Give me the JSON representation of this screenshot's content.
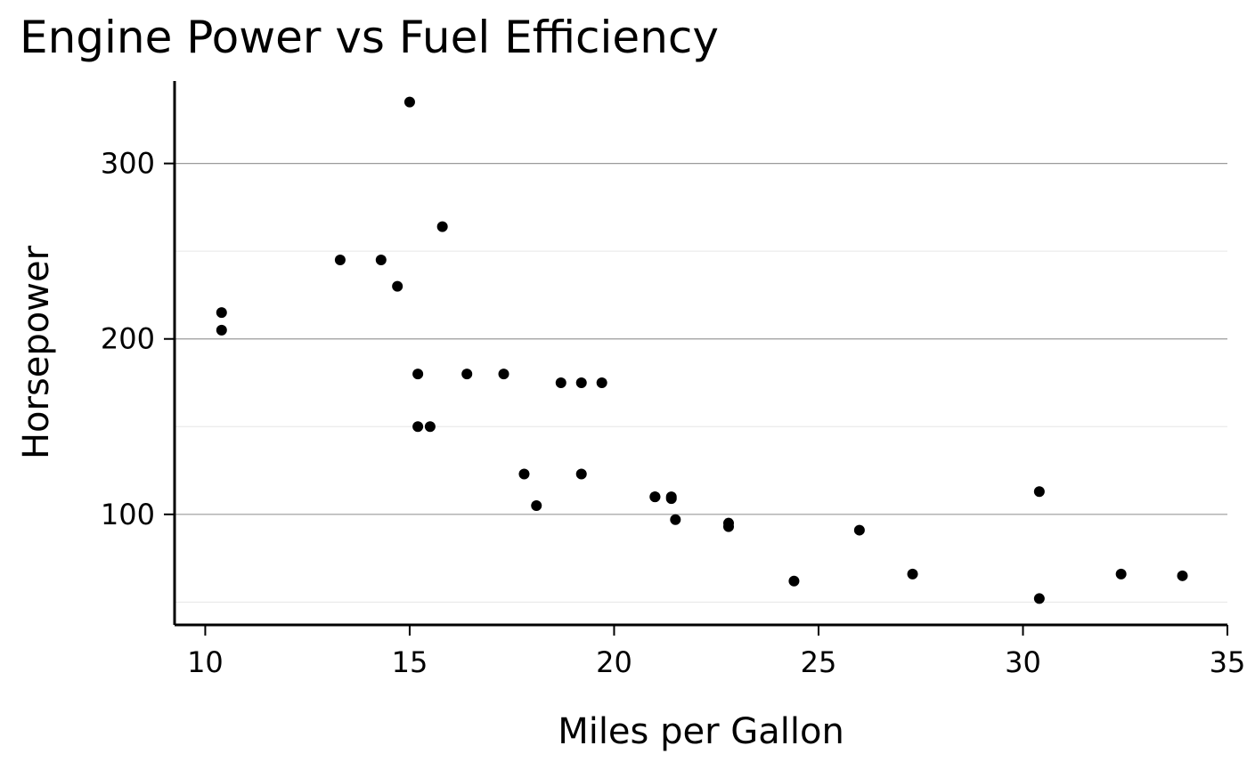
{
  "chart_data": {
    "type": "scatter",
    "title": "Engine Power vs Fuel Efficiency",
    "xlabel": "Miles per Gallon",
    "ylabel": "Horsepower",
    "xlim": [
      9.25,
      35
    ],
    "ylim": [
      37,
      347
    ],
    "xticks": [
      10,
      15,
      20,
      25,
      30,
      35
    ],
    "yticks": [
      100,
      200,
      300
    ],
    "y_minor_gridlines": [
      50,
      150,
      250
    ],
    "grid": true,
    "legend": "none",
    "point_color": "#000000",
    "x": [
      21.0,
      21.0,
      22.8,
      21.4,
      18.7,
      18.1,
      14.3,
      24.4,
      22.8,
      19.2,
      17.8,
      16.4,
      17.3,
      15.2,
      10.4,
      10.4,
      14.7,
      32.4,
      30.4,
      33.9,
      21.5,
      15.5,
      15.2,
      13.3,
      19.2,
      27.3,
      26.0,
      30.4,
      15.8,
      19.7,
      15.0,
      21.4
    ],
    "y": [
      110,
      110,
      93,
      110,
      175,
      105,
      245,
      62,
      95,
      123,
      123,
      180,
      180,
      180,
      205,
      215,
      230,
      66,
      52,
      65,
      97,
      150,
      150,
      245,
      175,
      66,
      91,
      113,
      264,
      175,
      335,
      109
    ]
  }
}
